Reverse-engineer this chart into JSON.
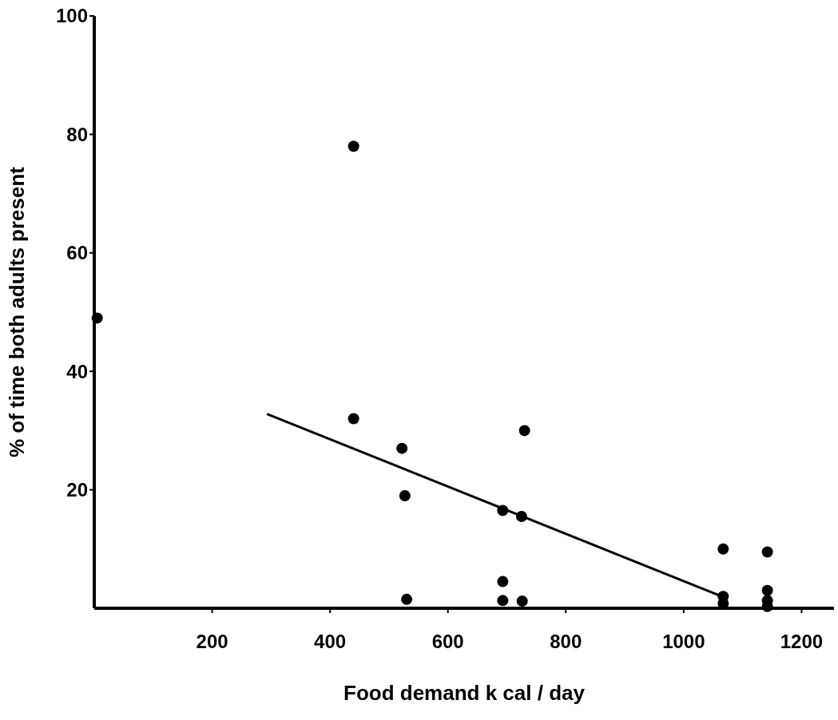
{
  "chart_data": {
    "type": "scatter",
    "xlabel": "Food demand  k cal / day",
    "ylabel": "% of time both adults present",
    "xlim": [
      0,
      1255
    ],
    "ylim": [
      0,
      100
    ],
    "xticks": [
      200,
      400,
      600,
      800,
      1000,
      1200
    ],
    "yticks": [
      20,
      40,
      60,
      80,
      100
    ],
    "grid": false,
    "series": [
      {
        "marker": "circle",
        "color": "#000000",
        "x": [
          5,
          440,
          440,
          522,
          527,
          530,
          693,
          693,
          693,
          725,
          726,
          730,
          1067,
          1067,
          1067,
          1142,
          1142,
          1142,
          1142
        ],
        "values": [
          49,
          78,
          32,
          27,
          19,
          1.5,
          16.5,
          4.5,
          1.3,
          15.5,
          1.2,
          30,
          10,
          2,
          0.8,
          9.5,
          3,
          1.3,
          0.3
        ]
      },
      {
        "type": "line",
        "color": "#000000",
        "x": [
          293,
          1067
        ],
        "values": [
          32.8,
          1.9
        ]
      }
    ]
  }
}
